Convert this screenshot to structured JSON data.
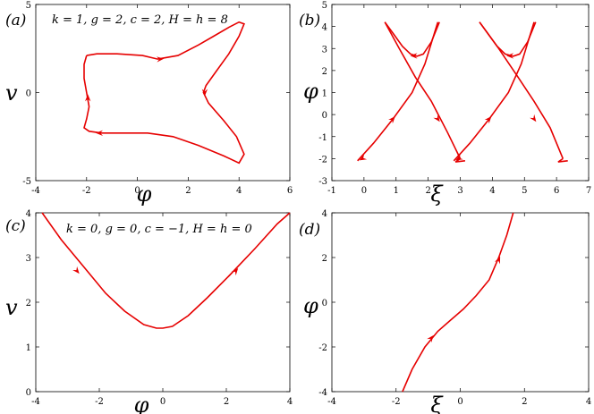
{
  "chart_data": [
    {
      "type": "line",
      "panel_label": "(a)",
      "annotation": "k = 1, g = 2, c = 2, H = h = 8",
      "xlabel": "φ",
      "ylabel": "v",
      "xlim": [
        -4,
        6
      ],
      "ylim": [
        -5,
        5
      ],
      "xticks": [
        "-4",
        "-2",
        "0",
        "2",
        "4",
        "6"
      ],
      "yticks": [
        "-5",
        "0",
        "5"
      ],
      "series": [
        {
          "x": [
            -2.0,
            -1.6,
            -0.8,
            0.2,
            0.8,
            1.6,
            2.4,
            3.0,
            3.6,
            4.0,
            4.2,
            4.0,
            3.6,
            3.1,
            2.7,
            2.6,
            2.8,
            3.4,
            3.9,
            4.2,
            4.0,
            3.4,
            2.4,
            1.4,
            0.4,
            -0.6,
            -1.4,
            -1.9,
            -2.1,
            -2.0,
            -1.9,
            -2.0,
            -2.1,
            -2.1,
            -2.0
          ],
          "y": [
            2.1,
            2.2,
            2.2,
            2.1,
            1.9,
            2.1,
            2.7,
            3.2,
            3.7,
            4.0,
            3.9,
            3.2,
            2.2,
            1.2,
            0.4,
            0.0,
            -0.6,
            -1.6,
            -2.5,
            -3.5,
            -4.0,
            -3.6,
            -3.0,
            -2.5,
            -2.3,
            -2.3,
            -2.3,
            -2.2,
            -2.0,
            -1.5,
            -0.8,
            0.0,
            0.8,
            1.6,
            2.1
          ]
        }
      ],
      "arrows": [
        [
          0.9,
          1.9,
          1.7,
          0.2
        ],
        [
          2.65,
          0.0,
          0.0,
          -1.0
        ],
        [
          -1.5,
          -2.3,
          -1.0,
          0.0
        ],
        [
          -1.95,
          -0.3,
          0.0,
          1.0
        ]
      ]
    },
    {
      "type": "line",
      "panel_label": "(b)",
      "xlabel": "ξ",
      "ylabel": "φ",
      "xlim": [
        -1,
        7
      ],
      "ylim": [
        -3,
        5
      ],
      "xticks": [
        "-1",
        "0",
        "1",
        "2",
        "3",
        "4",
        "5",
        "6",
        "7"
      ],
      "yticks": [
        "-3",
        "-2",
        "-1",
        "0",
        "1",
        "2",
        "3",
        "4",
        "5"
      ],
      "series": [
        {
          "x": [
            0.65,
            0.9,
            1.2,
            1.45,
            1.65,
            1.85,
            2.1,
            2.35
          ],
          "y": [
            4.2,
            3.7,
            3.1,
            2.75,
            2.65,
            2.75,
            3.3,
            4.2
          ]
        },
        {
          "x": [
            -0.2,
            0.3,
            0.9,
            1.5,
            1.9,
            2.3
          ],
          "y": [
            -2.1,
            -1.3,
            -0.2,
            1.0,
            2.3,
            4.2
          ]
        },
        {
          "x": [
            0.65,
            1.1,
            1.6,
            2.1,
            2.6,
            3.0
          ],
          "y": [
            4.2,
            3.0,
            1.7,
            0.6,
            -0.8,
            -2.0
          ]
        },
        {
          "x": [
            3.0,
            2.85,
            3.15
          ],
          "y": [
            -2.0,
            -2.15,
            -2.1
          ]
        },
        {
          "x": [
            3.6,
            3.85,
            4.15,
            4.4,
            4.65,
            4.85,
            5.1,
            5.35
          ],
          "y": [
            4.2,
            3.7,
            3.1,
            2.75,
            2.65,
            2.75,
            3.3,
            4.2
          ]
        },
        {
          "x": [
            2.8,
            3.3,
            3.9,
            4.5,
            4.9,
            5.3
          ],
          "y": [
            -2.1,
            -1.3,
            -0.2,
            1.0,
            2.3,
            4.2
          ]
        },
        {
          "x": [
            3.6,
            4.2,
            4.8,
            5.3,
            5.8,
            6.2
          ],
          "y": [
            4.2,
            3.0,
            1.7,
            0.6,
            -0.6,
            -2.0
          ]
        },
        {
          "x": [
            6.2,
            6.05,
            6.35
          ],
          "y": [
            -2.0,
            -2.15,
            -2.1
          ]
        }
      ],
      "arrows": [
        [
          1.55,
          2.67,
          -1.0,
          0.0
        ],
        [
          0.9,
          -0.2,
          0.6,
          1.0
        ],
        [
          2.3,
          -0.2,
          0.5,
          -1.0
        ],
        [
          -0.05,
          -2.0,
          -0.6,
          -0.5
        ],
        [
          4.55,
          2.67,
          -1.0,
          0.0
        ],
        [
          3.9,
          -0.2,
          0.6,
          1.0
        ],
        [
          5.3,
          -0.2,
          0.5,
          -1.0
        ],
        [
          2.95,
          -2.0,
          -0.6,
          -0.5
        ]
      ]
    },
    {
      "type": "line",
      "panel_label": "(c)",
      "annotation": "k = 0, g = 0, c = −1, H = h = 0",
      "xlabel": "φ",
      "ylabel": "v",
      "xlim": [
        -4,
        4
      ],
      "ylim": [
        0,
        4
      ],
      "xticks": [
        "-4",
        "-2",
        "0",
        "2",
        "4"
      ],
      "yticks": [
        "0",
        "1",
        "2",
        "3",
        "4"
      ],
      "series": [
        {
          "x": [
            -3.8,
            -3.2,
            -2.5,
            -1.8,
            -1.2,
            -0.6,
            -0.2,
            0.0,
            0.3,
            0.8,
            1.4,
            2.1,
            2.9,
            3.6,
            4.0
          ],
          "y": [
            4.0,
            3.4,
            2.8,
            2.2,
            1.8,
            1.5,
            1.42,
            1.42,
            1.46,
            1.7,
            2.1,
            2.6,
            3.2,
            3.75,
            4.0
          ]
        }
      ],
      "arrows": [
        [
          -2.7,
          2.7,
          0.7,
          -0.6
        ],
        [
          2.3,
          2.7,
          0.7,
          0.6
        ]
      ]
    },
    {
      "type": "line",
      "panel_label": "(d)",
      "xlabel": "ξ",
      "ylabel": "φ",
      "xlim": [
        -4,
        4
      ],
      "ylim": [
        -4,
        4
      ],
      "xticks": [
        "-4",
        "-2",
        "0",
        "2",
        "4"
      ],
      "yticks": [
        "-4",
        "-2",
        "0",
        "2",
        "4"
      ],
      "series": [
        {
          "x": [
            -1.8,
            -1.5,
            -1.1,
            -0.7,
            -0.3,
            0.1,
            0.5,
            0.9,
            1.2,
            1.45,
            1.65
          ],
          "y": [
            -4.0,
            -3.0,
            -2.0,
            -1.3,
            -0.8,
            -0.3,
            0.3,
            1.0,
            2.0,
            3.0,
            4.0
          ]
        }
      ],
      "arrows": [
        [
          -0.9,
          -1.6,
          0.4,
          0.7
        ],
        [
          1.2,
          1.9,
          0.3,
          1.0
        ]
      ]
    }
  ]
}
